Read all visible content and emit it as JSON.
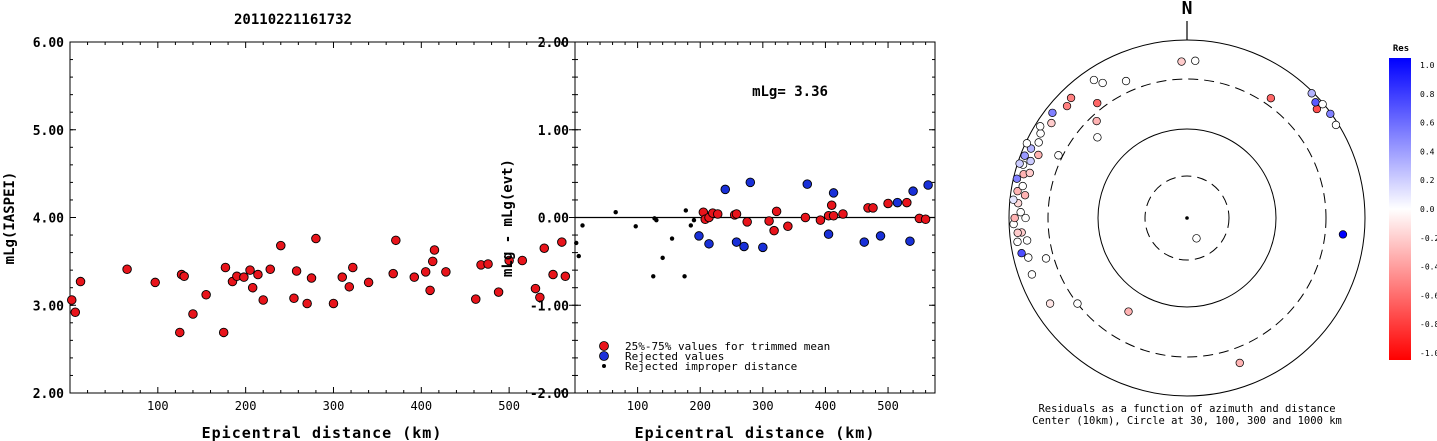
{
  "figure_title": "20110221161732",
  "chart_data": [
    {
      "type": "scatter",
      "id": "left",
      "xlabel": "Epicentral distance (km)",
      "ylabel": "mLg(IASPEI)",
      "xlim": [
        0,
        575
      ],
      "ylim": [
        2.0,
        6.0
      ],
      "xticks": [
        "100",
        "200",
        "300",
        "400",
        "500"
      ],
      "xtick_values": [
        100,
        200,
        300,
        400,
        500
      ],
      "yticks": [
        "2.00",
        "3.00",
        "4.00",
        "5.00",
        "6.00"
      ],
      "ytick_values": [
        2,
        3,
        4,
        5,
        6
      ],
      "series": [
        {
          "color": "#e8141b",
          "marker": "circle",
          "points": [
            [
              2,
              3.06
            ],
            [
              6,
              2.92
            ],
            [
              12,
              3.27
            ],
            [
              65,
              3.41
            ],
            [
              97,
              3.26
            ],
            [
              125,
              2.69
            ],
            [
              127,
              3.35
            ],
            [
              130,
              3.33
            ],
            [
              140,
              2.9
            ],
            [
              155,
              3.12
            ],
            [
              175,
              2.69
            ],
            [
              177,
              3.43
            ],
            [
              185,
              3.27
            ],
            [
              190,
              3.33
            ],
            [
              198,
              3.32
            ],
            [
              205,
              3.4
            ],
            [
              208,
              3.2
            ],
            [
              214,
              3.35
            ],
            [
              220,
              3.06
            ],
            [
              228,
              3.41
            ],
            [
              240,
              3.68
            ],
            [
              255,
              3.08
            ],
            [
              258,
              3.39
            ],
            [
              270,
              3.02
            ],
            [
              275,
              3.31
            ],
            [
              280,
              3.76
            ],
            [
              300,
              3.02
            ],
            [
              310,
              3.32
            ],
            [
              318,
              3.21
            ],
            [
              322,
              3.43
            ],
            [
              340,
              3.26
            ],
            [
              368,
              3.36
            ],
            [
              371,
              3.74
            ],
            [
              392,
              3.32
            ],
            [
              405,
              3.38
            ],
            [
              410,
              3.17
            ],
            [
              413,
              3.5
            ],
            [
              415,
              3.63
            ],
            [
              428,
              3.38
            ],
            [
              462,
              3.07
            ],
            [
              468,
              3.46
            ],
            [
              476,
              3.47
            ],
            [
              488,
              3.15
            ],
            [
              500,
              3.51
            ],
            [
              515,
              3.51
            ],
            [
              530,
              3.19
            ],
            [
              535,
              3.09
            ],
            [
              540,
              3.65
            ],
            [
              550,
              3.35
            ],
            [
              560,
              3.72
            ],
            [
              564,
              3.33
            ]
          ]
        }
      ]
    },
    {
      "type": "scatter",
      "id": "middle",
      "xlabel": "Epicentral distance (km)",
      "ylabel": "mLg - mLg(evt)",
      "annotation": "mLg= 3.36",
      "xlim": [
        0,
        575
      ],
      "ylim": [
        -2.0,
        2.0
      ],
      "xticks": [
        "100",
        "200",
        "300",
        "400",
        "500"
      ],
      "xtick_values": [
        100,
        200,
        300,
        400,
        500
      ],
      "yticks": [
        "-2.00",
        "-1.00",
        "0.00",
        "1.00",
        "2.00"
      ],
      "ytick_values": [
        -2,
        -1,
        0,
        1,
        2
      ],
      "zero_line": true,
      "legend": [
        {
          "label": "25%-75% values for trimmed mean",
          "color": "#e8141b",
          "marker": "circle"
        },
        {
          "label": "Rejected values",
          "color": "#1930d8",
          "marker": "circle"
        },
        {
          "label": "Rejected improper distance",
          "color": "#000000",
          "marker": "dot"
        }
      ],
      "series": [
        {
          "name": "25%-75% values for trimmed mean",
          "color": "#e8141b",
          "marker": "circle",
          "points": [
            [
              205,
              0.06
            ],
            [
              208,
              -0.02
            ],
            [
              214,
              0.0
            ],
            [
              220,
              0.05
            ],
            [
              228,
              0.04
            ],
            [
              255,
              0.03
            ],
            [
              258,
              0.04
            ],
            [
              275,
              -0.05
            ],
            [
              310,
              -0.04
            ],
            [
              318,
              -0.15
            ],
            [
              322,
              0.07
            ],
            [
              340,
              -0.1
            ],
            [
              368,
              0.0
            ],
            [
              392,
              -0.03
            ],
            [
              405,
              0.02
            ],
            [
              410,
              0.14
            ],
            [
              413,
              0.02
            ],
            [
              428,
              0.04
            ],
            [
              468,
              0.11
            ],
            [
              476,
              0.11
            ],
            [
              500,
              0.16
            ],
            [
              530,
              0.17
            ],
            [
              550,
              -0.01
            ],
            [
              560,
              -0.02
            ]
          ]
        },
        {
          "name": "Rejected values",
          "color": "#1930d8",
          "marker": "circle",
          "points": [
            [
              198,
              -0.21
            ],
            [
              214,
              -0.3
            ],
            [
              240,
              0.32
            ],
            [
              258,
              -0.28
            ],
            [
              270,
              -0.33
            ],
            [
              280,
              0.4
            ],
            [
              300,
              -0.34
            ],
            [
              371,
              0.38
            ],
            [
              405,
              -0.19
            ],
            [
              413,
              0.28
            ],
            [
              462,
              -0.28
            ],
            [
              488,
              -0.21
            ],
            [
              515,
              0.17
            ],
            [
              535,
              -0.27
            ],
            [
              540,
              0.3
            ],
            [
              564,
              0.37
            ]
          ]
        },
        {
          "name": "Rejected improper distance",
          "color": "#000000",
          "marker": "dot",
          "points": [
            [
              2,
              -0.29
            ],
            [
              6,
              -0.44
            ],
            [
              12,
              -0.09
            ],
            [
              65,
              0.06
            ],
            [
              97,
              -0.1
            ],
            [
              125,
              -0.67
            ],
            [
              127,
              -0.01
            ],
            [
              130,
              -0.03
            ],
            [
              140,
              -0.46
            ],
            [
              155,
              -0.24
            ],
            [
              175,
              -0.67
            ],
            [
              177,
              0.08
            ],
            [
              185,
              -0.09
            ],
            [
              190,
              -0.03
            ]
          ]
        }
      ]
    },
    {
      "type": "scatter",
      "id": "polar",
      "subtype": "polar",
      "north_label": "N",
      "caption_line1": "Residuals as a function of azimuth and distance",
      "caption_line2": "Center (10km), Circle at 30, 100, 300 and 1000 km",
      "rings_km": [
        30,
        100,
        300,
        1000
      ],
      "colorbar": {
        "title": "Res",
        "ticks": [
          "1.0",
          "0.8",
          "0.6",
          "0.4",
          "0.2",
          "0.0",
          "-0.2",
          "-0.4",
          "-0.6",
          "-0.8",
          "-1.0"
        ],
        "tick_values": [
          1.0,
          0.8,
          0.6,
          0.4,
          0.2,
          0.0,
          -0.2,
          -0.4,
          -0.6,
          -0.8,
          -1.0
        ],
        "max_color": "#0000ff",
        "mid_color": "#ffffff",
        "min_color": "#ff0000"
      },
      "points": [
        {
          "az": 155,
          "dist_km": 18,
          "res": 0.0
        },
        {
          "az": 35,
          "dist_km": 375,
          "res": -0.6
        },
        {
          "az": 50,
          "dist_km": 770,
          "res": -0.7
        },
        {
          "az": 48,
          "dist_km": 855,
          "res": 0.65
        },
        {
          "az": 45,
          "dist_km": 950,
          "res": 0.3
        },
        {
          "az": 50,
          "dist_km": 970,
          "res": 0.0
        },
        {
          "az": 54,
          "dist_km": 975,
          "res": 0.5
        },
        {
          "az": 58,
          "dist_km": 930,
          "res": 0.0
        },
        {
          "az": 96,
          "dist_km": 520,
          "res": 1.0
        },
        {
          "az": 3,
          "dist_km": 530,
          "res": 0.0
        },
        {
          "az": 358,
          "dist_km": 515,
          "res": -0.2
        },
        {
          "az": 336,
          "dist_km": 420,
          "res": 0.0
        },
        {
          "az": 322,
          "dist_km": 370,
          "res": -0.6
        },
        {
          "az": 317,
          "dist_km": 260,
          "res": -0.3
        },
        {
          "az": 312,
          "dist_km": 200,
          "res": 0.0
        },
        {
          "az": 296,
          "dist_km": 340,
          "res": 0.0
        },
        {
          "az": 254,
          "dist_km": 380,
          "res": 0.0
        },
        {
          "az": 232,
          "dist_km": 300,
          "res": 0.0
        },
        {
          "az": 212,
          "dist_km": 160,
          "res": -0.3
        },
        {
          "az": 160,
          "dist_km": 480,
          "res": -0.3
        },
        {
          "az": 238,
          "dist_km": 600,
          "res": -0.1
        },
        {
          "az": 250,
          "dist_km": 670,
          "res": 0.0
        },
        {
          "az": 256,
          "dist_km": 640,
          "res": 0.0
        },
        {
          "az": 262,
          "dist_km": 600,
          "res": 0.0
        },
        {
          "az": 258,
          "dist_km": 760,
          "res": 0.7
        },
        {
          "az": 262,
          "dist_km": 810,
          "res": 0.0
        },
        {
          "az": 265,
          "dist_km": 690,
          "res": -0.2
        },
        {
          "az": 265,
          "dist_km": 780,
          "res": -0.2
        },
        {
          "az": 268,
          "dist_km": 870,
          "res": 0.0
        },
        {
          "az": 270,
          "dist_km": 600,
          "res": 0.0
        },
        {
          "az": 270,
          "dist_km": 840,
          "res": -0.3
        },
        {
          "az": 272,
          "dist_km": 700,
          "res": 0.0
        },
        {
          "az": 275,
          "dist_km": 770,
          "res": -0.15
        },
        {
          "az": 276,
          "dist_km": 900,
          "res": 0.1
        },
        {
          "az": 278,
          "dist_km": 640,
          "res": -0.3
        },
        {
          "az": 279,
          "dist_km": 820,
          "res": -0.3
        },
        {
          "az": 281,
          "dist_km": 720,
          "res": 0.0
        },
        {
          "az": 283,
          "dist_km": 900,
          "res": 0.5
        },
        {
          "az": 285,
          "dist_km": 760,
          "res": -0.3
        },
        {
          "az": 286,
          "dist_km": 640,
          "res": -0.2
        },
        {
          "az": 288,
          "dist_km": 840,
          "res": 0.0
        },
        {
          "az": 288,
          "dist_km": 940,
          "res": 0.2
        },
        {
          "az": 290,
          "dist_km": 700,
          "res": 0.2
        },
        {
          "az": 291,
          "dist_km": 880,
          "res": 0.4
        },
        {
          "az": 293,
          "dist_km": 600,
          "res": -0.3
        },
        {
          "az": 294,
          "dist_km": 800,
          "res": 0.3
        },
        {
          "az": 295,
          "dist_km": 960,
          "res": 0.0
        },
        {
          "az": 297,
          "dist_km": 700,
          "res": 0.0
        },
        {
          "az": 300,
          "dist_km": 760,
          "res": 0.0
        },
        {
          "az": 302,
          "dist_km": 860,
          "res": 0.0
        },
        {
          "az": 305,
          "dist_km": 680,
          "res": -0.2
        },
        {
          "az": 308,
          "dist_km": 800,
          "res": 0.5
        },
        {
          "az": 313,
          "dist_km": 650,
          "res": -0.5
        },
        {
          "az": 316,
          "dist_km": 710,
          "res": -0.5
        },
        {
          "az": 326,
          "dist_km": 700,
          "res": 0.0
        },
        {
          "az": 328,
          "dist_km": 560,
          "res": 0.0
        }
      ]
    }
  ]
}
